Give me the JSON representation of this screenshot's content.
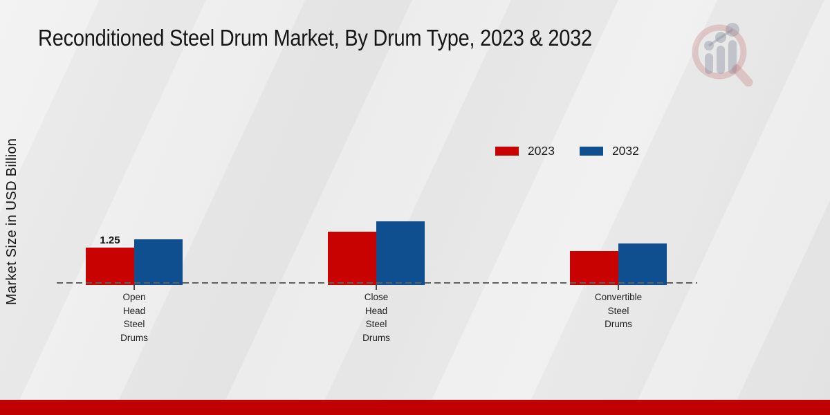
{
  "page": {
    "footer_accent_color": "#c00101",
    "background_color": "#e9e9e9",
    "logo": "magnifier-bar-chart-watermark"
  },
  "chart_data": {
    "type": "bar",
    "title": "Reconditioned Steel Drum Market, By Drum Type, 2023 & 2032",
    "ylabel": "Market Size in USD Billion",
    "xlabel": "",
    "categories": [
      "Open\nHead\nSteel\nDrums",
      "Close\nHead\nSteel\nDrums",
      "Convertible\nSteel\nDrums"
    ],
    "series": [
      {
        "name": "2023",
        "color": "#c80101",
        "values": [
          1.25,
          1.78,
          1.13
        ],
        "data_labels": [
          "1.25",
          "",
          ""
        ]
      },
      {
        "name": "2032",
        "color": "#0f4e8f",
        "values": [
          1.53,
          2.13,
          1.39
        ],
        "data_labels": [
          "",
          "",
          ""
        ]
      }
    ],
    "ylim": [
      0,
      2.5
    ],
    "grid": false,
    "legend_position": "top-right",
    "baseline_style": "dashed",
    "y_axis_ticks_visible": false,
    "annotations": [
      "Only the first 2023 bar carries a printed value: 1.25"
    ]
  }
}
